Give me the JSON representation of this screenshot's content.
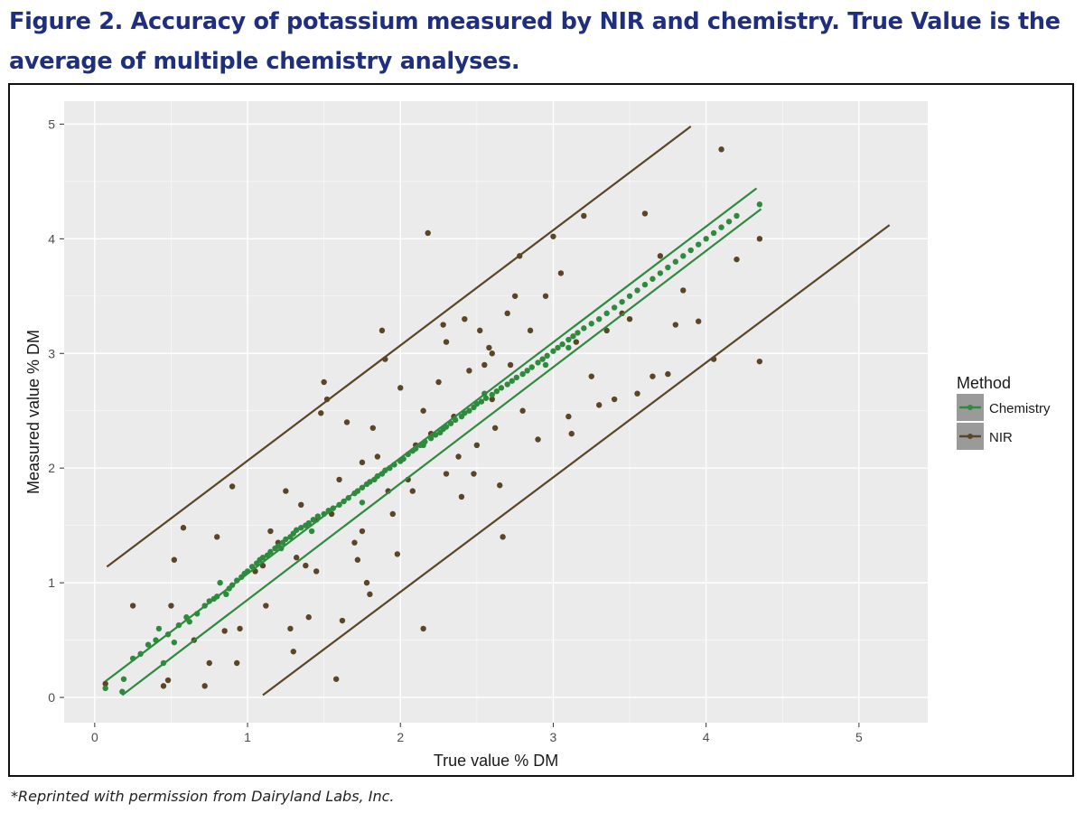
{
  "figure": {
    "title": "Figure 2.  Accuracy of potassium measured by NIR and chemistry.  True Value is the average of multiple chemistry analyses.",
    "footnote": "*Reprinted with permission from Dairyland Labs, Inc."
  },
  "chart_data": {
    "type": "scatter",
    "xlabel": "True value % DM",
    "ylabel": "Measured value % DM",
    "xlim": [
      -0.2,
      5.45
    ],
    "ylim": [
      -0.22,
      5.2
    ],
    "xticks": [
      0,
      1,
      2,
      3,
      4,
      5
    ],
    "yticks": [
      0,
      1,
      2,
      3,
      4,
      5
    ],
    "grid": true,
    "legend_position": "right",
    "legend_title": "Method",
    "colors": {
      "panel": "#ebebeb",
      "grid": "#ffffff",
      "chemistry": "#2e8b3e",
      "nir": "#5a4526"
    },
    "series": [
      {
        "name": "Chemistry",
        "color": "#2e8b3e",
        "lines": [
          {
            "x": [
              0.07,
              4.33
            ],
            "y": [
              0.14,
              4.44
            ]
          },
          {
            "x": [
              0.18,
              4.36
            ],
            "y": [
              0.02,
              4.26
            ]
          }
        ],
        "points": [
          [
            0.07,
            0.08
          ],
          [
            0.18,
            0.05
          ],
          [
            0.19,
            0.16
          ],
          [
            0.25,
            0.34
          ],
          [
            0.3,
            0.38
          ],
          [
            0.35,
            0.46
          ],
          [
            0.4,
            0.5
          ],
          [
            0.42,
            0.6
          ],
          [
            0.45,
            0.3
          ],
          [
            0.48,
            0.55
          ],
          [
            0.52,
            0.48
          ],
          [
            0.55,
            0.63
          ],
          [
            0.6,
            0.7
          ],
          [
            0.62,
            0.66
          ],
          [
            0.67,
            0.73
          ],
          [
            0.72,
            0.8
          ],
          [
            0.75,
            0.84
          ],
          [
            0.78,
            0.86
          ],
          [
            0.8,
            0.88
          ],
          [
            0.82,
            1.0
          ],
          [
            0.86,
            0.9
          ],
          [
            0.88,
            0.95
          ],
          [
            0.9,
            0.98
          ],
          [
            0.93,
            1.02
          ],
          [
            0.96,
            1.05
          ],
          [
            0.98,
            1.08
          ],
          [
            1.0,
            1.1
          ],
          [
            1.03,
            1.14
          ],
          [
            1.06,
            1.17
          ],
          [
            1.08,
            1.2
          ],
          [
            1.1,
            1.22
          ],
          [
            1.13,
            1.24
          ],
          [
            1.15,
            1.27
          ],
          [
            1.18,
            1.3
          ],
          [
            1.2,
            1.32
          ],
          [
            1.23,
            1.35
          ],
          [
            1.25,
            1.38
          ],
          [
            1.28,
            1.4
          ],
          [
            1.3,
            1.43
          ],
          [
            1.32,
            1.46
          ],
          [
            1.35,
            1.48
          ],
          [
            1.38,
            1.5
          ],
          [
            1.4,
            1.52
          ],
          [
            1.43,
            1.55
          ],
          [
            1.46,
            1.58
          ],
          [
            1.5,
            1.6
          ],
          [
            1.53,
            1.63
          ],
          [
            1.56,
            1.65
          ],
          [
            1.6,
            1.68
          ],
          [
            1.63,
            1.71
          ],
          [
            1.66,
            1.74
          ],
          [
            1.7,
            1.78
          ],
          [
            1.72,
            1.8
          ],
          [
            1.75,
            1.83
          ],
          [
            1.78,
            1.86
          ],
          [
            1.8,
            1.88
          ],
          [
            1.83,
            1.9
          ],
          [
            1.85,
            1.93
          ],
          [
            1.88,
            1.95
          ],
          [
            1.9,
            1.98
          ],
          [
            1.93,
            2.0
          ],
          [
            1.96,
            2.03
          ],
          [
            2.0,
            2.06
          ],
          [
            2.02,
            2.08
          ],
          [
            2.05,
            2.12
          ],
          [
            2.08,
            2.15
          ],
          [
            2.1,
            2.17
          ],
          [
            2.13,
            2.2
          ],
          [
            2.16,
            2.23
          ],
          [
            2.2,
            2.26
          ],
          [
            2.23,
            2.29
          ],
          [
            2.26,
            2.31
          ],
          [
            2.28,
            2.34
          ],
          [
            2.3,
            2.36
          ],
          [
            2.33,
            2.39
          ],
          [
            2.36,
            2.42
          ],
          [
            2.4,
            2.45
          ],
          [
            2.42,
            2.48
          ],
          [
            2.45,
            2.5
          ],
          [
            2.48,
            2.53
          ],
          [
            2.5,
            2.56
          ],
          [
            2.53,
            2.58
          ],
          [
            2.56,
            2.61
          ],
          [
            2.6,
            2.64
          ],
          [
            2.63,
            2.67
          ],
          [
            2.66,
            2.7
          ],
          [
            2.7,
            2.73
          ],
          [
            2.73,
            2.76
          ],
          [
            2.76,
            2.79
          ],
          [
            2.8,
            2.82
          ],
          [
            2.83,
            2.85
          ],
          [
            2.86,
            2.88
          ],
          [
            2.9,
            2.92
          ],
          [
            2.93,
            2.95
          ],
          [
            2.96,
            2.98
          ],
          [
            3.0,
            3.02
          ],
          [
            3.03,
            3.05
          ],
          [
            3.06,
            3.08
          ],
          [
            3.1,
            3.12
          ],
          [
            3.13,
            3.15
          ],
          [
            3.16,
            3.18
          ],
          [
            3.2,
            3.22
          ],
          [
            3.25,
            3.26
          ],
          [
            3.3,
            3.3
          ],
          [
            3.35,
            3.35
          ],
          [
            3.4,
            3.4
          ],
          [
            3.45,
            3.45
          ],
          [
            3.5,
            3.5
          ],
          [
            3.55,
            3.55
          ],
          [
            3.6,
            3.6
          ],
          [
            3.65,
            3.65
          ],
          [
            3.7,
            3.7
          ],
          [
            3.75,
            3.75
          ],
          [
            3.8,
            3.8
          ],
          [
            3.85,
            3.85
          ],
          [
            3.9,
            3.9
          ],
          [
            3.95,
            3.95
          ],
          [
            4.0,
            4.0
          ],
          [
            4.05,
            4.05
          ],
          [
            4.1,
            4.1
          ],
          [
            4.15,
            4.15
          ],
          [
            4.2,
            4.2
          ],
          [
            4.35,
            4.3
          ],
          [
            1.22,
            1.3
          ],
          [
            1.42,
            1.45
          ],
          [
            1.75,
            1.7
          ],
          [
            2.15,
            2.2
          ],
          [
            2.55,
            2.65
          ],
          [
            2.95,
            2.9
          ],
          [
            3.1,
            3.05
          ]
        ]
      },
      {
        "name": "NIR",
        "color": "#5a4526",
        "lines": [
          {
            "x": [
              0.08,
              3.9
            ],
            "y": [
              1.14,
              4.98
            ]
          },
          {
            "x": [
              1.1,
              5.2
            ],
            "y": [
              0.02,
              4.12
            ]
          }
        ],
        "points": [
          [
            0.07,
            0.12
          ],
          [
            0.25,
            0.8
          ],
          [
            0.45,
            0.1
          ],
          [
            0.48,
            0.15
          ],
          [
            0.5,
            0.8
          ],
          [
            0.52,
            1.2
          ],
          [
            0.58,
            1.48
          ],
          [
            0.65,
            0.5
          ],
          [
            0.72,
            0.1
          ],
          [
            0.75,
            0.3
          ],
          [
            0.8,
            1.4
          ],
          [
            0.85,
            0.58
          ],
          [
            0.9,
            1.84
          ],
          [
            0.93,
            0.3
          ],
          [
            0.95,
            0.6
          ],
          [
            1.05,
            1.1
          ],
          [
            1.1,
            1.15
          ],
          [
            1.12,
            0.8
          ],
          [
            1.15,
            1.45
          ],
          [
            1.2,
            1.35
          ],
          [
            1.25,
            1.8
          ],
          [
            1.28,
            0.6
          ],
          [
            1.3,
            0.4
          ],
          [
            1.32,
            1.22
          ],
          [
            1.35,
            1.68
          ],
          [
            1.38,
            1.15
          ],
          [
            1.4,
            0.7
          ],
          [
            1.45,
            1.55
          ],
          [
            1.48,
            2.48
          ],
          [
            1.5,
            2.75
          ],
          [
            1.52,
            2.6
          ],
          [
            1.55,
            1.6
          ],
          [
            1.58,
            0.16
          ],
          [
            1.6,
            1.9
          ],
          [
            1.62,
            0.67
          ],
          [
            1.65,
            2.4
          ],
          [
            1.7,
            1.35
          ],
          [
            1.72,
            1.2
          ],
          [
            1.75,
            2.05
          ],
          [
            1.78,
            1.0
          ],
          [
            1.8,
            0.9
          ],
          [
            1.82,
            2.35
          ],
          [
            1.85,
            2.1
          ],
          [
            1.88,
            3.2
          ],
          [
            1.9,
            2.95
          ],
          [
            1.92,
            1.8
          ],
          [
            1.95,
            1.6
          ],
          [
            1.98,
            1.25
          ],
          [
            2.0,
            2.7
          ],
          [
            2.05,
            1.9
          ],
          [
            2.08,
            1.8
          ],
          [
            2.1,
            2.2
          ],
          [
            2.15,
            2.5
          ],
          [
            2.18,
            4.05
          ],
          [
            2.2,
            2.3
          ],
          [
            2.25,
            2.75
          ],
          [
            2.28,
            3.25
          ],
          [
            2.3,
            3.1
          ],
          [
            2.35,
            2.45
          ],
          [
            2.38,
            2.1
          ],
          [
            2.4,
            1.75
          ],
          [
            2.42,
            3.3
          ],
          [
            2.45,
            2.85
          ],
          [
            2.48,
            1.95
          ],
          [
            2.5,
            2.2
          ],
          [
            2.52,
            3.2
          ],
          [
            2.55,
            2.9
          ],
          [
            2.58,
            3.05
          ],
          [
            2.6,
            3.0
          ],
          [
            2.62,
            2.35
          ],
          [
            2.65,
            1.85
          ],
          [
            2.67,
            1.4
          ],
          [
            2.7,
            3.35
          ],
          [
            2.72,
            2.9
          ],
          [
            2.75,
            3.5
          ],
          [
            2.78,
            3.85
          ],
          [
            2.8,
            2.5
          ],
          [
            2.85,
            3.2
          ],
          [
            2.9,
            2.25
          ],
          [
            2.95,
            3.5
          ],
          [
            3.0,
            4.02
          ],
          [
            3.05,
            3.7
          ],
          [
            3.1,
            2.45
          ],
          [
            3.12,
            2.3
          ],
          [
            3.15,
            3.1
          ],
          [
            3.2,
            4.2
          ],
          [
            3.25,
            2.8
          ],
          [
            3.3,
            2.55
          ],
          [
            3.35,
            3.2
          ],
          [
            3.4,
            2.6
          ],
          [
            3.45,
            3.35
          ],
          [
            3.5,
            3.3
          ],
          [
            3.55,
            2.65
          ],
          [
            3.6,
            4.22
          ],
          [
            3.65,
            2.8
          ],
          [
            3.7,
            3.85
          ],
          [
            3.75,
            2.82
          ],
          [
            3.8,
            3.25
          ],
          [
            3.85,
            3.55
          ],
          [
            3.95,
            3.28
          ],
          [
            4.05,
            2.95
          ],
          [
            4.1,
            4.78
          ],
          [
            4.2,
            3.82
          ],
          [
            4.35,
            4.0
          ],
          [
            4.35,
            2.93
          ],
          [
            2.15,
            0.6
          ],
          [
            1.75,
            1.45
          ],
          [
            1.45,
            1.1
          ],
          [
            2.3,
            1.95
          ],
          [
            2.6,
            2.6
          ]
        ]
      }
    ]
  }
}
